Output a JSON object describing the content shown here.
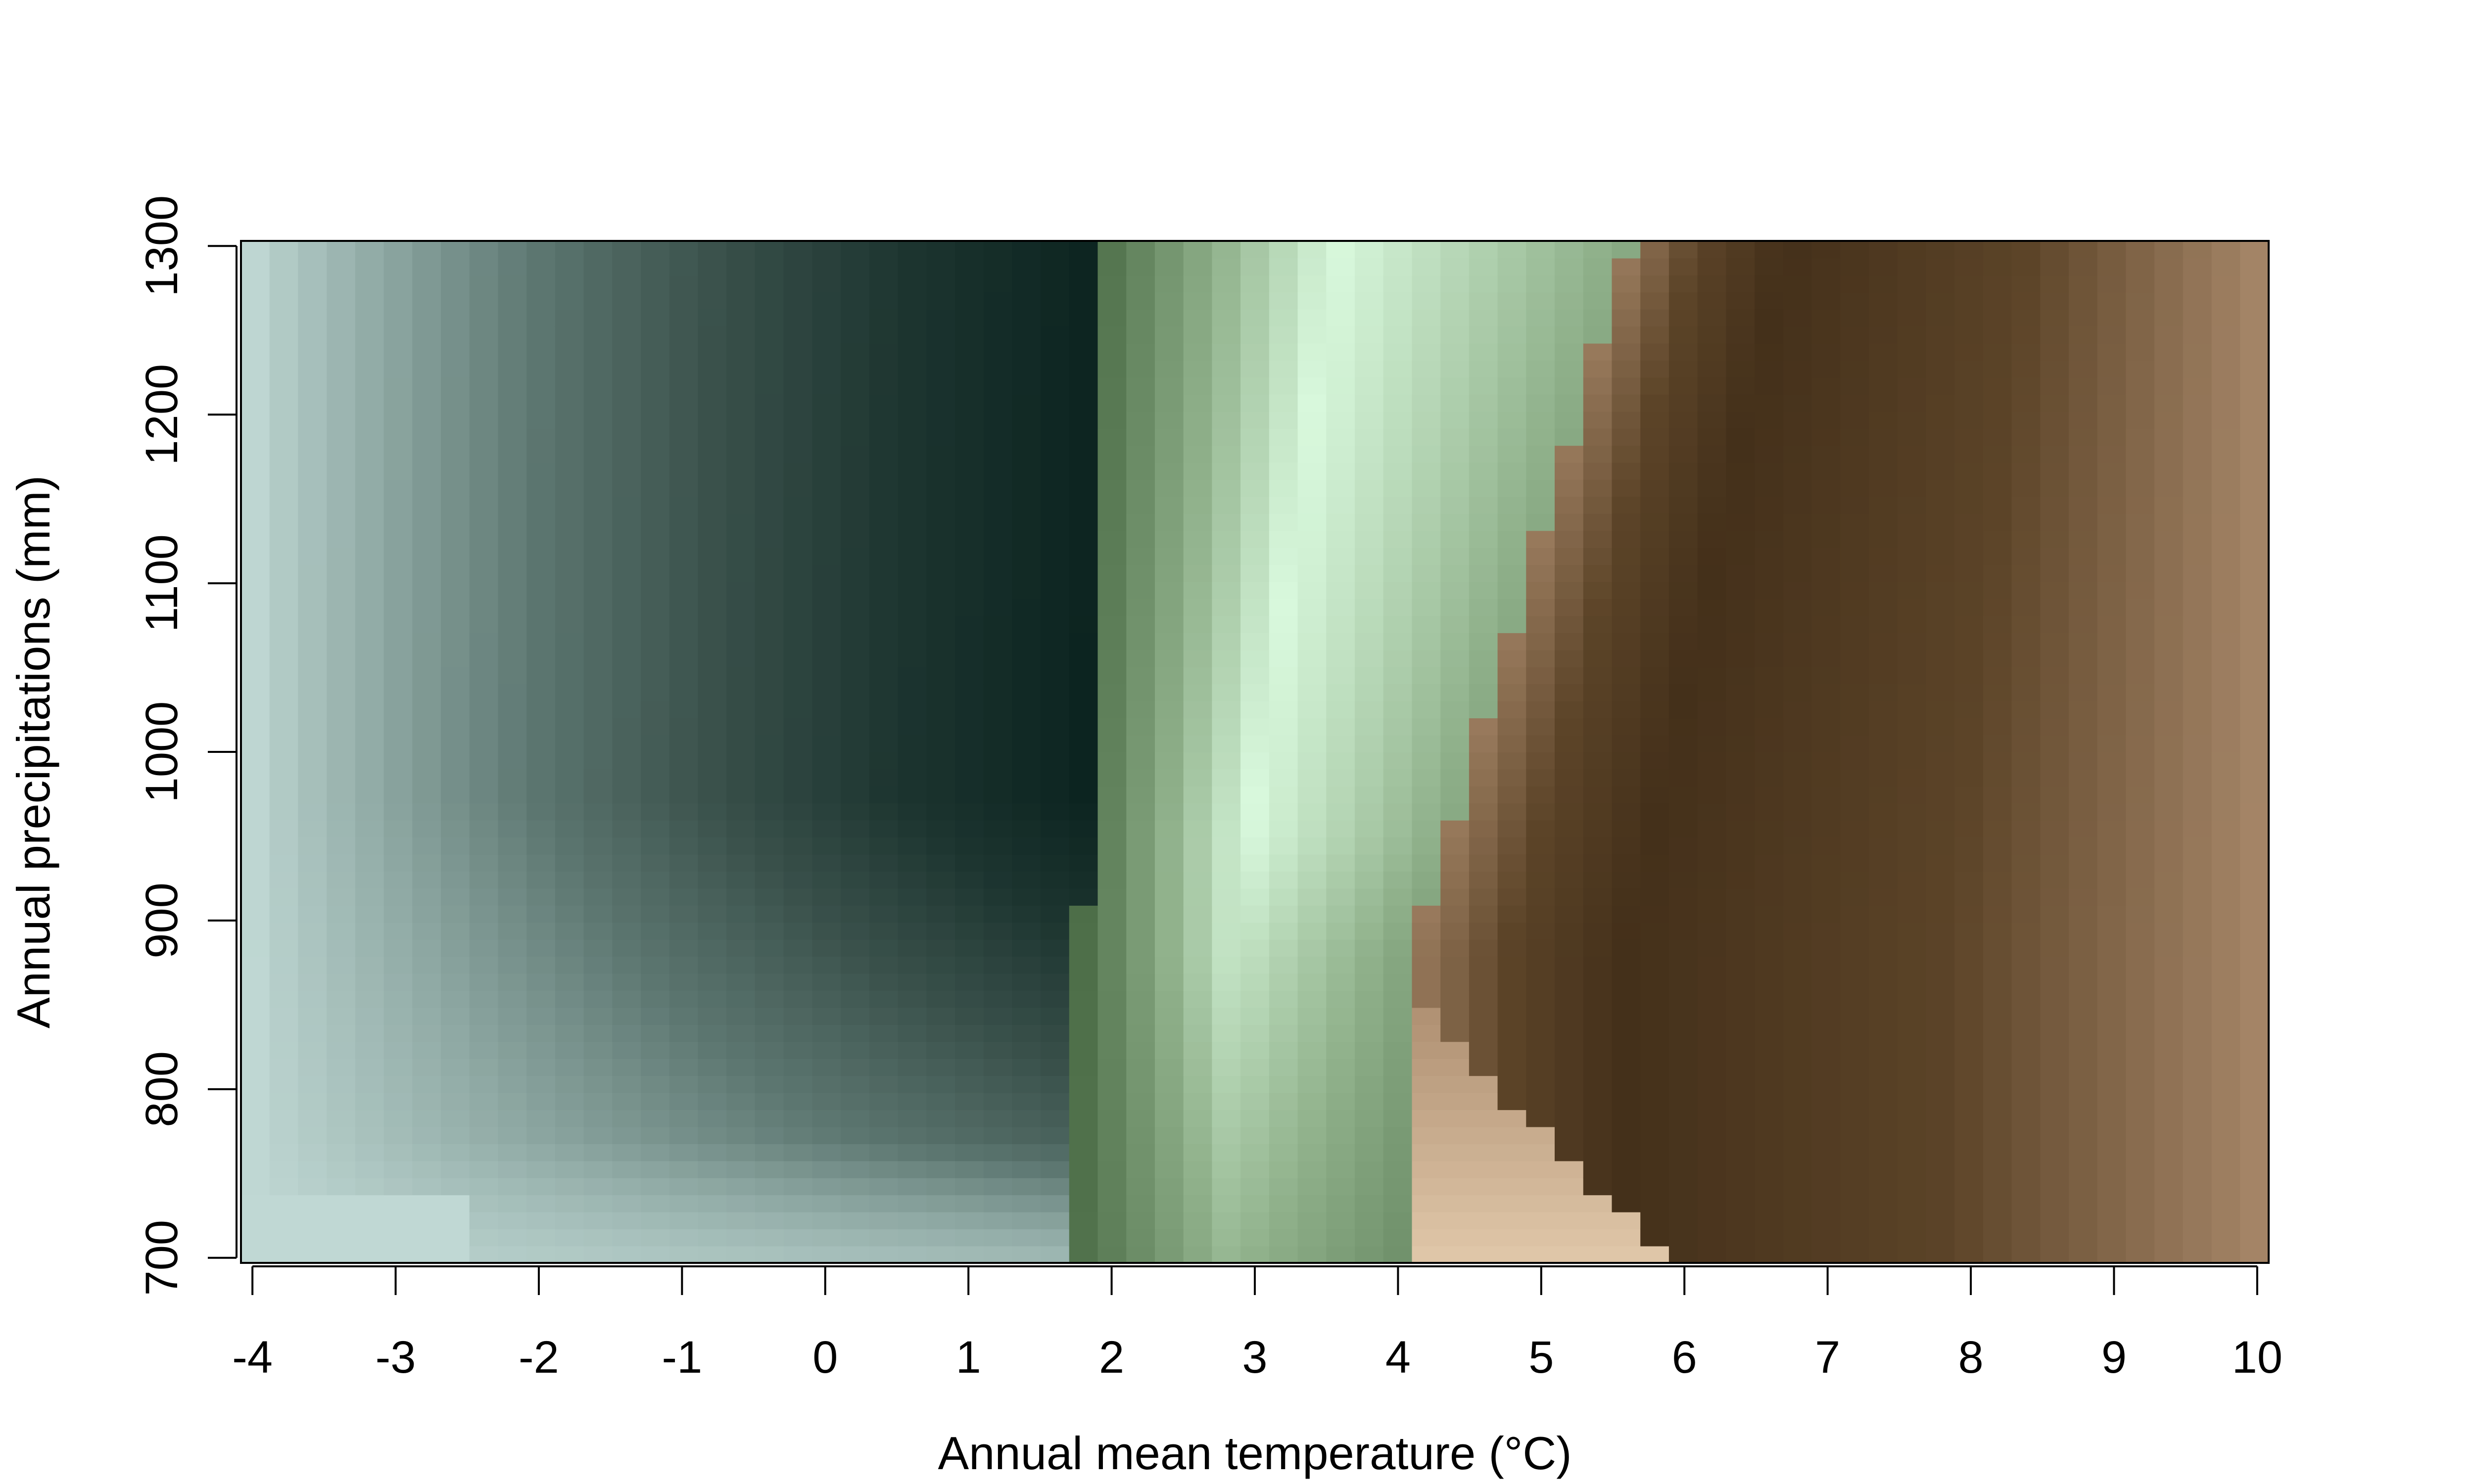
{
  "chart_data": {
    "type": "heatmap",
    "title": "",
    "xlabel": "Annual mean temperature (°C)",
    "ylabel": "Annual precipitations (mm)",
    "xlim": [
      -4.08,
      10.08
    ],
    "ylim": [
      697,
      1303
    ],
    "x_ticks": [
      -4,
      -3,
      -2,
      -1,
      0,
      1,
      2,
      3,
      4,
      5,
      6,
      7,
      8,
      9,
      10
    ],
    "x_tick_labels": [
      "-4",
      "-3",
      "-2",
      "-1",
      "0",
      "1",
      "2",
      "3",
      "4",
      "5",
      "6",
      "7",
      "8",
      "9",
      "10"
    ],
    "y_ticks": [
      700,
      800,
      900,
      1000,
      1100,
      1200,
      1300
    ],
    "y_tick_labels": [
      "700",
      "800",
      "900",
      "1000",
      "1100",
      "1200",
      "1300"
    ],
    "grid": false,
    "legend": "none",
    "colorscale": {
      "green_stops": [
        "#c0d8d4",
        "#8fa9a4",
        "#5c7670",
        "#3a514b",
        "#1d3530",
        "#0c2420"
      ],
      "light_green_stops": [
        "#4d6e48",
        "#8fb08a",
        "#d8f8dc"
      ],
      "brown_stops": [
        "#f8e2c4",
        "#a8886a",
        "#5c4428",
        "#44301a"
      ]
    },
    "zones": [
      {
        "name": "cold dark green",
        "temperature_range": [
          -4,
          1.6
        ],
        "darkest_at_temperature": 1.5
      },
      {
        "name": "light green",
        "temperature_range": [
          1.6,
          5.6
        ],
        "lightest_at_temperature": 3.5
      },
      {
        "name": "brown",
        "temperature_range": [
          4.1,
          10
        ],
        "darkest_at_temperature": 6.7
      },
      {
        "name": "pale peach",
        "temperature_range": [
          4.1,
          5.8
        ],
        "precipitation_range": [
          700,
          840
        ]
      }
    ]
  }
}
